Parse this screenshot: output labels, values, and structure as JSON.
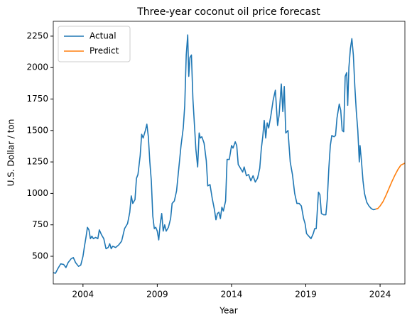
{
  "chart_data": {
    "type": "line",
    "title": "Three-year coconut oil price forecast",
    "xlabel": "Year",
    "ylabel": "U.S. Dollar / ton",
    "xlim": [
      2002,
      2025.67
    ],
    "ylim": [
      280,
      2368
    ],
    "xticks": [
      2004,
      2009,
      2014,
      2019,
      2024
    ],
    "yticks": [
      500,
      750,
      1000,
      1250,
      1500,
      1750,
      2000,
      2250
    ],
    "legend": "upper left",
    "series": [
      {
        "name": "Actual",
        "color": "#1f77b4",
        "x": [
          2002.0,
          2002.15,
          2002.3,
          2002.5,
          2002.7,
          2002.85,
          2003.0,
          2003.2,
          2003.35,
          2003.5,
          2003.7,
          2003.85,
          2004.0,
          2004.1,
          2004.2,
          2004.3,
          2004.4,
          2004.5,
          2004.6,
          2004.7,
          2004.85,
          2005.0,
          2005.1,
          2005.25,
          2005.4,
          2005.55,
          2005.7,
          2005.8,
          2005.9,
          2006.0,
          2006.2,
          2006.4,
          2006.6,
          2006.8,
          2007.0,
          2007.15,
          2007.25,
          2007.35,
          2007.5,
          2007.6,
          2007.7,
          2007.85,
          2007.95,
          2008.05,
          2008.2,
          2008.3,
          2008.4,
          2008.5,
          2008.6,
          2008.7,
          2008.8,
          2008.9,
          2009.0,
          2009.1,
          2009.2,
          2009.3,
          2009.4,
          2009.5,
          2009.6,
          2009.75,
          2009.9,
          2010.0,
          2010.15,
          2010.3,
          2010.45,
          2010.6,
          2010.75,
          2010.85,
          2010.95,
          2011.05,
          2011.12,
          2011.2,
          2011.3,
          2011.4,
          2011.5,
          2011.6,
          2011.72,
          2011.82,
          2011.9,
          2012.0,
          2012.15,
          2012.3,
          2012.4,
          2012.55,
          2012.7,
          2012.85,
          2012.95,
          2013.05,
          2013.15,
          2013.25,
          2013.35,
          2013.45,
          2013.6,
          2013.7,
          2013.85,
          2014.0,
          2014.1,
          2014.25,
          2014.35,
          2014.45,
          2014.6,
          2014.75,
          2014.85,
          2015.0,
          2015.15,
          2015.3,
          2015.45,
          2015.6,
          2015.75,
          2015.9,
          2016.0,
          2016.1,
          2016.2,
          2016.3,
          2016.4,
          2016.5,
          2016.65,
          2016.8,
          2016.95,
          2017.1,
          2017.2,
          2017.35,
          2017.45,
          2017.55,
          2017.65,
          2017.8,
          2017.95,
          2018.1,
          2018.25,
          2018.4,
          2018.55,
          2018.7,
          2018.85,
          2018.95,
          2019.05,
          2019.2,
          2019.35,
          2019.5,
          2019.6,
          2019.7,
          2019.85,
          2019.95,
          2020.05,
          2020.2,
          2020.35,
          2020.45,
          2020.55,
          2020.65,
          2020.75,
          2020.9,
          2021.0,
          2021.1,
          2021.25,
          2021.35,
          2021.45,
          2021.55,
          2021.65,
          2021.75,
          2021.82,
          2021.9,
          2022.0,
          2022.1,
          2022.2,
          2022.3,
          2022.4,
          2022.5,
          2022.6,
          2022.65,
          2022.75,
          2022.85,
          2022.95,
          2023.1,
          2023.25,
          2023.4,
          2023.55,
          2023.7
        ],
        "values": [
          370,
          365,
          400,
          440,
          435,
          410,
          450,
          480,
          490,
          450,
          420,
          430,
          500,
          580,
          650,
          730,
          710,
          640,
          660,
          640,
          650,
          640,
          710,
          670,
          640,
          560,
          570,
          600,
          560,
          580,
          570,
          590,
          620,
          720,
          760,
          850,
          980,
          920,
          950,
          1120,
          1150,
          1300,
          1470,
          1440,
          1500,
          1550,
          1450,
          1250,
          1100,
          820,
          720,
          730,
          700,
          630,
          760,
          840,
          700,
          750,
          700,
          730,
          800,
          920,
          940,
          1020,
          1200,
          1380,
          1520,
          1700,
          2100,
          2260,
          1930,
          2080,
          2100,
          1750,
          1550,
          1350,
          1210,
          1480,
          1440,
          1450,
          1400,
          1260,
          1060,
          1070,
          960,
          870,
          790,
          840,
          850,
          800,
          890,
          860,
          940,
          1270,
          1270,
          1380,
          1360,
          1410,
          1380,
          1230,
          1200,
          1170,
          1210,
          1140,
          1150,
          1100,
          1140,
          1090,
          1120,
          1200,
          1350,
          1450,
          1580,
          1440,
          1560,
          1520,
          1620,
          1740,
          1820,
          1540,
          1620,
          1870,
          1650,
          1850,
          1480,
          1500,
          1250,
          1150,
          1000,
          920,
          920,
          900,
          800,
          760,
          680,
          660,
          640,
          680,
          720,
          720,
          1010,
          990,
          840,
          830,
          830,
          960,
          1200,
          1380,
          1460,
          1450,
          1460,
          1600,
          1710,
          1660,
          1500,
          1490,
          1930,
          1960,
          1700,
          2000,
          2150,
          2230,
          2100,
          1850,
          1650,
          1500,
          1250,
          1380,
          1250,
          1100,
          1000,
          930,
          900,
          880,
          870,
          875
        ]
      },
      {
        "name": "Predict",
        "color": "#ff7f0e",
        "x": [
          2023.7,
          2023.85,
          2024.0,
          2024.2,
          2024.4,
          2024.6,
          2024.8,
          2025.0,
          2025.2,
          2025.4,
          2025.67
        ],
        "values": [
          875,
          880,
          900,
          935,
          985,
          1040,
          1095,
          1145,
          1190,
          1225,
          1240
        ]
      }
    ]
  }
}
